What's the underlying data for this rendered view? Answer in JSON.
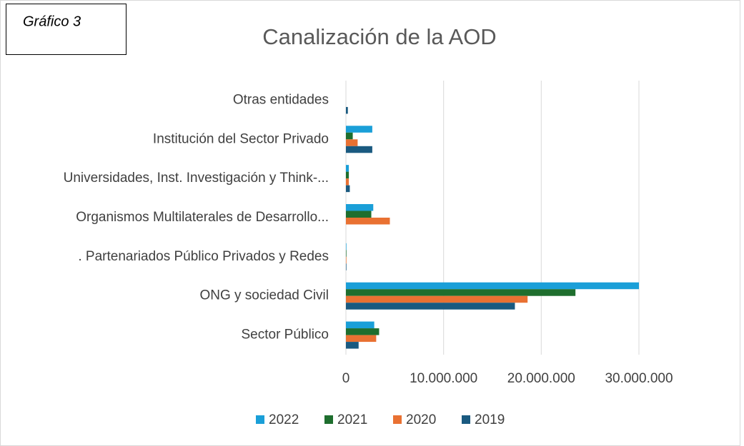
{
  "chart_data": {
    "type": "bar",
    "orientation": "horizontal",
    "figure_label": "Gráfico 3",
    "title": "Canalización de la AOD",
    "categories": [
      "Otras entidades",
      "Institución del Sector Privado",
      "Universidades, Inst. Investigación y Think-...",
      "Organismos Multilaterales de Desarrollo...",
      ". Partenariados Público Privados y Redes",
      "ONG y sociedad Civil",
      "Sector Público"
    ],
    "series": [
      {
        "name": "2022",
        "color": "#1a9fd8",
        "values": [
          0,
          2700000,
          300000,
          2800000,
          50000,
          30000000,
          2900000
        ]
      },
      {
        "name": "2021",
        "color": "#1e6e2e",
        "values": [
          0,
          700000,
          300000,
          2600000,
          50000,
          23500000,
          3400000
        ]
      },
      {
        "name": "2020",
        "color": "#e97132",
        "values": [
          0,
          1200000,
          300000,
          4500000,
          50000,
          18600000,
          3100000
        ]
      },
      {
        "name": "2019",
        "color": "#1a5a80",
        "values": [
          200000,
          2700000,
          400000,
          0,
          50000,
          17300000,
          1300000
        ]
      }
    ],
    "xlim": [
      0,
      30000000
    ],
    "xticks": [
      0,
      {
        "value": 10000000,
        "label": "10.000.000"
      },
      {
        "value": 20000000,
        "label": "20.000.000"
      },
      {
        "value": 30000000,
        "label": "30.000.000"
      }
    ],
    "grid": true,
    "legend": "bottom"
  }
}
